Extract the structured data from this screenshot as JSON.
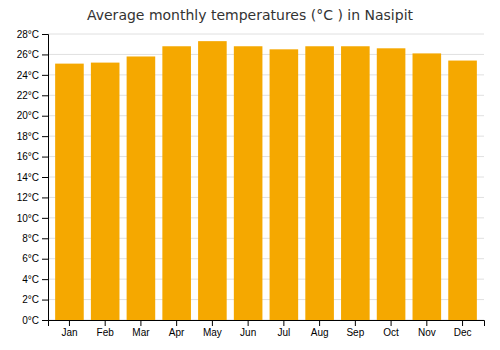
{
  "chart_data": {
    "type": "bar",
    "title": "Average monthly temperatures (°C ) in Nasipit",
    "categories": [
      "Jan",
      "Feb",
      "Mar",
      "Apr",
      "May",
      "Jun",
      "Jul",
      "Aug",
      "Sep",
      "Oct",
      "Nov",
      "Dec"
    ],
    "values": [
      25.1,
      25.2,
      25.8,
      26.8,
      27.3,
      26.8,
      26.5,
      26.8,
      26.8,
      26.6,
      26.1,
      25.4
    ],
    "color": "#F5A800",
    "ylim": [
      0,
      28
    ],
    "yticks": [
      {
        "value": 0,
        "label": "0°C"
      },
      {
        "value": 2,
        "label": "2°C"
      },
      {
        "value": 4,
        "label": "4°C"
      },
      {
        "value": 6,
        "label": "6°C"
      },
      {
        "value": 8,
        "label": "8°C"
      },
      {
        "value": 10,
        "label": "10°C"
      },
      {
        "value": 12,
        "label": "12°C"
      },
      {
        "value": 14,
        "label": "14°C"
      },
      {
        "value": 16,
        "label": "16°C"
      },
      {
        "value": 18,
        "label": "18°C"
      },
      {
        "value": 20,
        "label": "20°C"
      },
      {
        "value": 22,
        "label": "22°C"
      },
      {
        "value": 24,
        "label": "24°C"
      },
      {
        "value": 26,
        "label": "26°C"
      },
      {
        "value": 28,
        "label": "28°C"
      }
    ],
    "grid": true
  }
}
